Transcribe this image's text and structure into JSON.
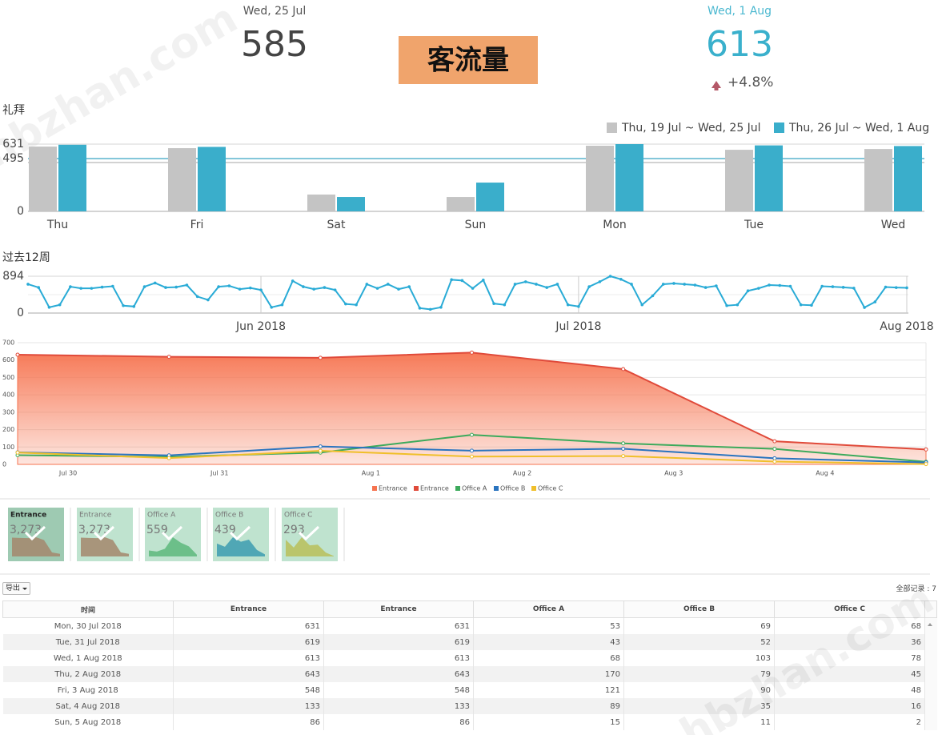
{
  "watermarks": [
    "hbzhan.com",
    "hbzhan.com"
  ],
  "header": {
    "previous": {
      "date": "Wed, 25 Jul",
      "value": 585
    },
    "title": "客流量",
    "current": {
      "date": "Wed, 1 Aug",
      "value": 613,
      "change": "+4.8%"
    }
  },
  "weekly": {
    "type": "bar",
    "title": "礼拜",
    "categories": [
      "Thu",
      "Fri",
      "Sat",
      "Sun",
      "Mon",
      "Tue",
      "Wed"
    ],
    "series": [
      {
        "name": "Thu, 19 Jul ~ Wed, 25 Jul",
        "color": "#c4c4c4",
        "values": [
          608,
          593,
          158,
          135,
          616,
          578,
          585
        ]
      },
      {
        "name": "Thu, 26 Jul ~ Wed, 1 Aug",
        "color": "#3aaecb",
        "values": [
          625,
          605,
          135,
          270,
          631,
          619,
          613
        ]
      }
    ],
    "ylim": [
      0,
      631
    ],
    "yticks": [
      0,
      495,
      631
    ],
    "average_lines": [
      {
        "value": 458,
        "color": "#b8b8b8"
      },
      {
        "value": 495,
        "color": "#3aa6c4"
      }
    ]
  },
  "trend": {
    "type": "line",
    "title": "过去12周",
    "color": "#29abd6",
    "values": [
      700,
      620,
      140,
      200,
      640,
      600,
      600,
      630,
      650,
      180,
      160,
      640,
      730,
      620,
      630,
      680,
      400,
      320,
      640,
      660,
      580,
      610,
      560,
      140,
      200,
      780,
      640,
      580,
      620,
      560,
      220,
      200,
      700,
      600,
      700,
      580,
      640,
      120,
      90,
      140,
      810,
      790,
      600,
      800,
      230,
      200,
      700,
      760,
      700,
      620,
      700,
      200,
      160,
      640,
      760,
      894,
      820,
      700,
      200,
      420,
      700,
      720,
      700,
      680,
      620,
      660,
      180,
      200,
      540,
      600,
      680,
      670,
      650,
      200,
      190,
      650,
      640,
      625,
      605,
      135,
      270,
      631,
      619,
      613
    ],
    "xlim": [
      0,
      83
    ],
    "xticks": [
      {
        "value": 22,
        "label": "Jun 2018"
      },
      {
        "value": 52,
        "label": "Jul 2018"
      },
      {
        "value": 83,
        "label": "Aug 2018"
      }
    ],
    "ylim": [
      0,
      894
    ],
    "yticks": [
      0,
      894
    ]
  },
  "daily": {
    "type": "area",
    "categories": [
      "Jul 30",
      "Jul 31",
      "Aug 1",
      "Aug 2",
      "Aug 3",
      "Aug 4",
      null
    ],
    "series": [
      {
        "name": "Entrance",
        "color": "#f6734f",
        "area": true,
        "values": [
          631,
          619,
          613,
          643,
          548,
          133,
          86
        ]
      },
      {
        "name": "Entrance",
        "color": "#e04a3a",
        "values": [
          631,
          619,
          613,
          643,
          548,
          133,
          86
        ]
      },
      {
        "name": "Office A",
        "color": "#3daa5c",
        "values": [
          53,
          43,
          68,
          170,
          121,
          89,
          15
        ]
      },
      {
        "name": "Office B",
        "color": "#2a74bf",
        "values": [
          69,
          52,
          103,
          79,
          90,
          35,
          11
        ]
      },
      {
        "name": "Office C",
        "color": "#f0bf2a",
        "values": [
          68,
          36,
          78,
          45,
          48,
          16,
          2
        ]
      }
    ],
    "ylim": [
      0,
      700
    ],
    "yticks": [
      0,
      100,
      200,
      300,
      400,
      500,
      600,
      700
    ]
  },
  "tiles": [
    {
      "name": "Entrance",
      "value": "3,273",
      "color": "#a3876c",
      "selected": true
    },
    {
      "name": "Entrance",
      "value": "3,273",
      "color": "#a3876c"
    },
    {
      "name": "Office A",
      "value": "559",
      "color": "#5db97c"
    },
    {
      "name": "Office B",
      "value": "439",
      "color": "#3c9cb0"
    },
    {
      "name": "Office C",
      "value": "293",
      "color": "#b9c05a"
    }
  ],
  "table": {
    "export": "导出",
    "total": "全部记录 : 7",
    "columns": [
      "时间",
      "Entrance",
      "Entrance",
      "Office A",
      "Office B",
      "Office C"
    ],
    "rows": [
      [
        "Mon, 30 Jul 2018",
        631,
        631,
        53,
        69,
        68
      ],
      [
        "Tue, 31 Jul 2018",
        619,
        619,
        43,
        52,
        36
      ],
      [
        "Wed, 1 Aug 2018",
        613,
        613,
        68,
        103,
        78
      ],
      [
        "Thu, 2 Aug 2018",
        643,
        643,
        170,
        79,
        45
      ],
      [
        "Fri, 3 Aug 2018",
        548,
        548,
        121,
        90,
        48
      ],
      [
        "Sat, 4 Aug 2018",
        133,
        133,
        89,
        35,
        16
      ],
      [
        "Sun, 5 Aug 2018",
        86,
        86,
        15,
        11,
        2
      ]
    ]
  }
}
